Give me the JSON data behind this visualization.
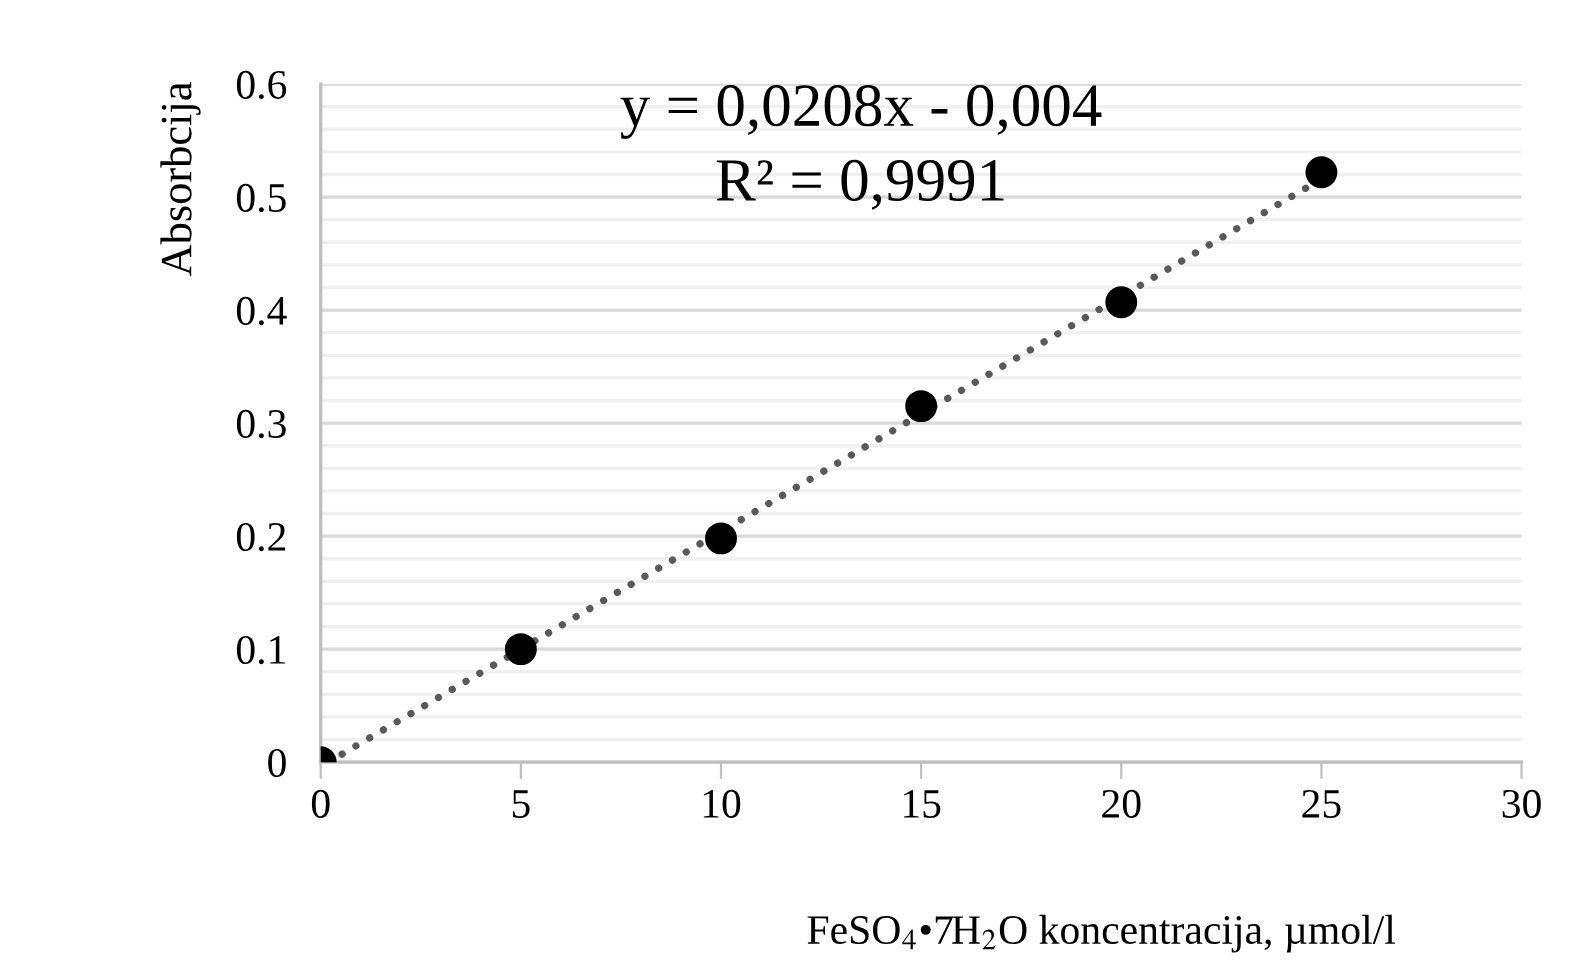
{
  "chart_data": {
    "type": "scatter",
    "xlabel": "FeSO$_{4}$•7H$_{2}$O koncentracija, µmol/l",
    "ylabel": "Absorbcija",
    "annotations": [
      "y = 0,0208x - 0,004",
      "R² = 0,9991"
    ],
    "x": [
      0,
      5,
      10,
      15,
      20,
      25
    ],
    "series": [
      {
        "color": "#000000",
        "marker": "circle",
        "values": [
          0,
          0.1,
          0.198,
          0.315,
          0.407,
          0.522
        ]
      },
      {
        "type": "line",
        "color": "#595959",
        "line_style": "dotted",
        "marker": "none",
        "x": [
          0.19,
          25
        ],
        "values": [
          0,
          0.516
        ]
      }
    ],
    "xlim": [
      0,
      30
    ],
    "xticks": [
      0,
      5,
      10,
      15,
      20,
      25,
      30
    ],
    "ylim": [
      0,
      0.6
    ],
    "yticks": [
      0,
      {
        "value": 0.02,
        "label": null
      },
      {
        "value": 0.04,
        "label": null
      },
      {
        "value": 0.06,
        "label": null
      },
      {
        "value": 0.08,
        "label": null
      },
      0.1,
      {
        "value": 0.12,
        "label": null
      },
      {
        "value": 0.14,
        "label": null
      },
      {
        "value": 0.16,
        "label": null
      },
      {
        "value": 0.18,
        "label": null
      },
      0.2,
      {
        "value": 0.22,
        "label": null
      },
      {
        "value": 0.24,
        "label": null
      },
      {
        "value": 0.26,
        "label": null
      },
      {
        "value": 0.28,
        "label": null
      },
      0.3,
      {
        "value": 0.32,
        "label": null
      },
      {
        "value": 0.34,
        "label": null
      },
      {
        "value": 0.36,
        "label": null
      },
      {
        "value": 0.38,
        "label": null
      },
      0.4,
      {
        "value": 0.42,
        "label": null
      },
      {
        "value": 0.44,
        "label": null
      },
      {
        "value": 0.46,
        "label": null
      },
      {
        "value": 0.48,
        "label": null
      },
      0.5,
      {
        "value": 0.52,
        "label": null
      },
      {
        "value": 0.54,
        "label": null
      },
      {
        "value": 0.56,
        "label": null
      },
      {
        "value": 0.58,
        "label": null
      },
      0.6
    ],
    "grid": "y",
    "legend": false
  }
}
